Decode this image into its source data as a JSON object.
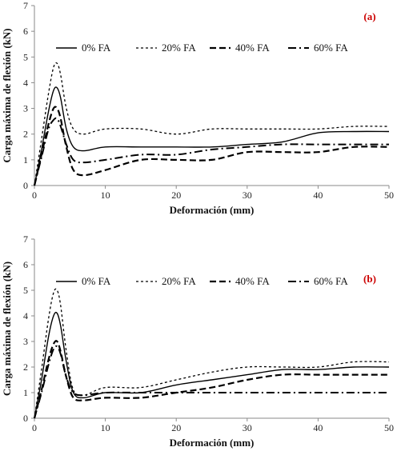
{
  "chart_data": [
    {
      "type": "line",
      "panel_label": "(a)",
      "xlabel": "Deformación (mm)",
      "ylabel": "Carga máxima de flexión (kN)",
      "xlim": [
        0,
        50
      ],
      "ylim": [
        0,
        7
      ],
      "xticks": [
        "0",
        "10",
        "20",
        "30",
        "40",
        "50"
      ],
      "yticks": [
        "0",
        "1",
        "2",
        "3",
        "4",
        "5",
        "6",
        "7"
      ],
      "grid": false,
      "legend": "top",
      "series": [
        {
          "name": "0% FA",
          "style": "solid",
          "x": [
            0,
            1,
            2,
            2.7,
            3.2,
            3.7,
            4.5,
            5.5,
            7,
            10,
            15,
            20,
            25,
            30,
            35,
            40,
            45,
            50
          ],
          "y": [
            0,
            1.4,
            2.9,
            3.7,
            3.8,
            3.4,
            2.2,
            1.5,
            1.35,
            1.5,
            1.5,
            1.5,
            1.5,
            1.6,
            1.7,
            2.05,
            2.1,
            2.1
          ]
        },
        {
          "name": "20% FA",
          "style": "dotted",
          "x": [
            0,
            1,
            2,
            2.7,
            3.2,
            3.7,
            4.5,
            5.5,
            7,
            10,
            15,
            20,
            25,
            30,
            35,
            40,
            45,
            50
          ],
          "y": [
            0,
            1.8,
            3.6,
            4.6,
            4.75,
            4.3,
            3.0,
            2.2,
            2.0,
            2.2,
            2.2,
            2.0,
            2.2,
            2.2,
            2.2,
            2.2,
            2.3,
            2.3
          ]
        },
        {
          "name": "40% FA",
          "style": "dashed",
          "x": [
            0,
            1,
            2,
            2.7,
            3.2,
            3.7,
            4.5,
            5.5,
            7,
            10,
            15,
            20,
            25,
            30,
            35,
            40,
            45,
            50
          ],
          "y": [
            0,
            1.2,
            2.4,
            3.0,
            3.0,
            2.6,
            1.5,
            0.6,
            0.4,
            0.6,
            1.0,
            1.0,
            1.0,
            1.3,
            1.3,
            1.3,
            1.5,
            1.5
          ]
        },
        {
          "name": "60% FA",
          "style": "dashdot",
          "x": [
            0,
            1,
            2,
            2.7,
            3.2,
            3.7,
            4.5,
            5.5,
            7,
            10,
            15,
            20,
            25,
            30,
            35,
            40,
            45,
            50
          ],
          "y": [
            0,
            1.1,
            2.2,
            2.55,
            2.6,
            2.3,
            1.6,
            1.0,
            0.9,
            1.0,
            1.2,
            1.2,
            1.4,
            1.5,
            1.6,
            1.6,
            1.6,
            1.6
          ]
        }
      ]
    },
    {
      "type": "line",
      "panel_label": "(b)",
      "xlabel": "Deformación (mm)",
      "ylabel": "Carga máxima de flexión (kN)",
      "xlim": [
        0,
        50
      ],
      "ylim": [
        0,
        7
      ],
      "xticks": [
        "0",
        "10",
        "20",
        "30",
        "40",
        "50"
      ],
      "yticks": [
        "0",
        "1",
        "2",
        "3",
        "4",
        "5",
        "6",
        "7"
      ],
      "grid": false,
      "legend": "top",
      "series": [
        {
          "name": "0% FA",
          "style": "solid",
          "x": [
            0,
            1,
            2,
            2.7,
            3.2,
            3.7,
            4.5,
            5.5,
            7,
            10,
            15,
            20,
            25,
            30,
            35,
            40,
            45,
            50
          ],
          "y": [
            0,
            1.5,
            3.2,
            4.0,
            4.1,
            3.6,
            2.2,
            1.0,
            0.8,
            1.0,
            1.0,
            1.3,
            1.5,
            1.7,
            1.9,
            1.9,
            2.0,
            2.0
          ]
        },
        {
          "name": "20% FA",
          "style": "dotted",
          "x": [
            0,
            1,
            2,
            2.7,
            3.2,
            3.7,
            4.5,
            5.5,
            7,
            10,
            15,
            20,
            25,
            30,
            35,
            40,
            45,
            50
          ],
          "y": [
            0,
            1.9,
            3.9,
            4.9,
            5.0,
            4.4,
            2.6,
            1.1,
            0.9,
            1.2,
            1.2,
            1.5,
            1.8,
            2.0,
            2.0,
            2.0,
            2.2,
            2.2
          ]
        },
        {
          "name": "40% FA",
          "style": "dashed",
          "x": [
            0,
            1,
            2,
            2.7,
            3.2,
            3.7,
            4.5,
            5.5,
            7,
            10,
            15,
            20,
            25,
            30,
            35,
            40,
            45,
            50
          ],
          "y": [
            0,
            1.1,
            2.3,
            2.9,
            3.0,
            2.6,
            1.6,
            0.8,
            0.7,
            0.8,
            0.8,
            1.0,
            1.2,
            1.5,
            1.7,
            1.7,
            1.7,
            1.7
          ]
        },
        {
          "name": "60% FA",
          "style": "dashdot",
          "x": [
            0,
            1,
            2,
            2.7,
            3.2,
            3.7,
            4.5,
            5.5,
            7,
            10,
            15,
            20,
            25,
            30,
            35,
            40,
            45,
            50
          ],
          "y": [
            0,
            1.0,
            2.1,
            2.7,
            2.8,
            2.5,
            1.6,
            1.0,
            0.9,
            1.0,
            1.0,
            1.0,
            1.0,
            1.0,
            1.0,
            1.0,
            1.0,
            1.0
          ]
        }
      ]
    }
  ]
}
